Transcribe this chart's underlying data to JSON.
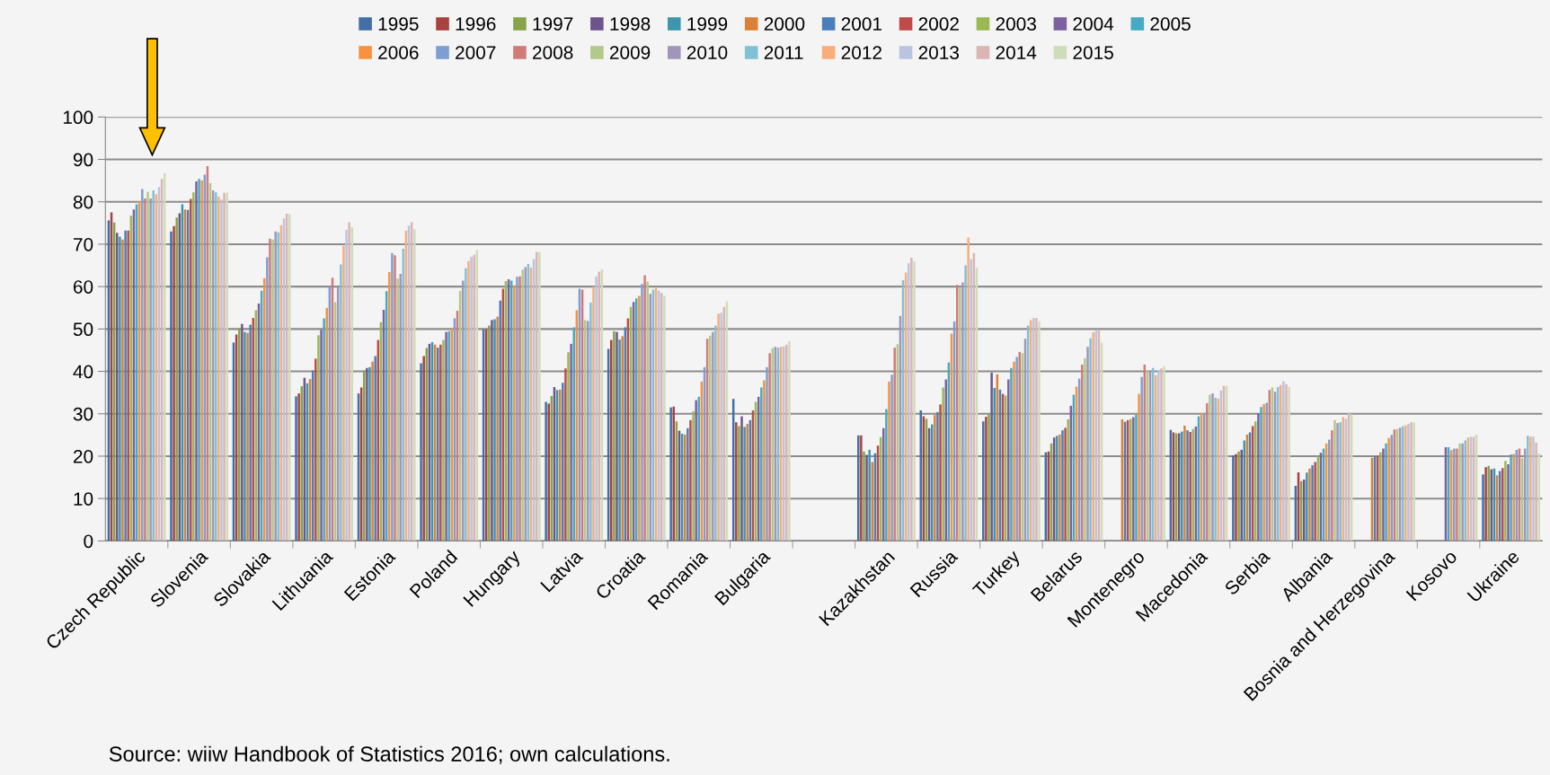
{
  "chart_data": {
    "type": "bar",
    "categories": [
      "Czech Republic",
      "Slovenia",
      "Slovakia",
      "Lithuania",
      "Estonia",
      "Poland",
      "Hungary",
      "Latvia",
      "Croatia",
      "Romania",
      "Bulgaria",
      null,
      "Kazakhstan",
      "Russia",
      "Turkey",
      "Belarus",
      "Montenegro",
      "Macedonia",
      "Serbia",
      "Albania",
      "Bosnia and Herzegovina",
      "Kosovo",
      "Ukraine"
    ],
    "series": [
      {
        "name": "1995",
        "color": "#416fa6",
        "values": [
          75.6,
          73.0,
          46.8,
          34.1,
          34.8,
          41.9,
          49.9,
          32.8,
          45.3,
          31.5,
          33.5,
          null,
          24.9,
          30.8,
          28.2,
          20.9,
          null,
          26.2,
          20.2,
          13.0,
          null,
          null,
          15.7
        ]
      },
      {
        "name": "1996",
        "color": "#a8423f",
        "values": [
          77.5,
          74.3,
          48.7,
          34.8,
          36.2,
          43.6,
          49.9,
          32.4,
          47.4,
          31.7,
          28.0,
          null,
          24.9,
          29.4,
          29.3,
          21.1,
          null,
          25.6,
          20.5,
          16.2,
          null,
          null,
          17.4
        ]
      },
      {
        "name": "1997",
        "color": "#86a44a",
        "values": [
          75.1,
          76.3,
          50.2,
          36.5,
          40.2,
          45.5,
          50.8,
          34.2,
          49.5,
          28.2,
          27.1,
          null,
          21.1,
          28.8,
          29.9,
          23.0,
          null,
          25.4,
          21.1,
          14.1,
          null,
          null,
          17.7
        ]
      },
      {
        "name": "1998",
        "color": "#6e548d",
        "values": [
          72.7,
          77.3,
          51.2,
          38.5,
          40.8,
          46.5,
          52.1,
          36.3,
          49.3,
          26.0,
          29.4,
          null,
          20.3,
          26.6,
          39.7,
          24.4,
          null,
          25.4,
          21.5,
          14.5,
          null,
          null,
          16.9
        ]
      },
      {
        "name": "1999",
        "color": "#3d96ae",
        "values": [
          71.8,
          79.4,
          49.3,
          37.2,
          41.0,
          46.9,
          52.3,
          35.6,
          47.5,
          25.3,
          26.9,
          null,
          21.5,
          27.5,
          36.1,
          24.8,
          null,
          25.8,
          23.7,
          16.1,
          null,
          null,
          17.1
        ]
      },
      {
        "name": "2000",
        "color": "#da8137",
        "values": [
          71.1,
          78.2,
          49.1,
          38.2,
          42.3,
          46.3,
          52.9,
          35.7,
          48.3,
          25.1,
          27.6,
          null,
          18.6,
          29.7,
          39.3,
          25.1,
          28.7,
          27.2,
          25.1,
          17.1,
          19.6,
          null,
          15.5
        ]
      },
      {
        "name": "2001",
        "color": "#4a7ebb",
        "values": [
          73.2,
          78.1,
          51.0,
          40.2,
          43.6,
          45.6,
          56.7,
          37.3,
          50.4,
          26.6,
          28.5,
          null,
          20.7,
          30.4,
          35.7,
          26.1,
          28.1,
          26.1,
          25.6,
          17.9,
          20.0,
          null,
          16.5
        ]
      },
      {
        "name": "2002",
        "color": "#be4b48",
        "values": [
          73.2,
          80.7,
          52.6,
          43.0,
          47.4,
          46.3,
          59.5,
          40.7,
          52.5,
          28.5,
          30.8,
          null,
          22.5,
          32.2,
          34.7,
          26.7,
          28.5,
          25.7,
          27.1,
          18.6,
          20.1,
          null,
          17.2
        ]
      },
      {
        "name": "2003",
        "color": "#98b954",
        "values": [
          76.7,
          82.2,
          54.4,
          48.5,
          51.6,
          47.4,
          61.3,
          44.5,
          55.2,
          30.6,
          32.8,
          null,
          24.5,
          36.2,
          34.3,
          28.7,
          28.8,
          26.4,
          28.2,
          20.0,
          20.9,
          null,
          18.9
        ]
      },
      {
        "name": "2004",
        "color": "#7d60a0",
        "values": [
          78.2,
          84.8,
          56.0,
          49.8,
          54.5,
          49.3,
          61.7,
          46.5,
          56.4,
          33.2,
          34.0,
          null,
          26.6,
          38.1,
          38.1,
          31.9,
          29.2,
          27.0,
          30.1,
          20.8,
          21.8,
          22.1,
          18.1
        ]
      },
      {
        "name": "2005",
        "color": "#46aac5",
        "values": [
          79.4,
          85.4,
          59.0,
          52.5,
          58.9,
          49.5,
          61.4,
          50.4,
          57.2,
          34.0,
          36.2,
          null,
          31.1,
          42.1,
          40.8,
          34.5,
          29.8,
          29.4,
          31.6,
          21.8,
          23.0,
          22.1,
          20.4
        ]
      },
      {
        "name": "2006",
        "color": "#f69240",
        "values": [
          80.1,
          85.0,
          62.0,
          55.0,
          63.4,
          50.1,
          60.3,
          54.4,
          57.8,
          37.6,
          37.9,
          null,
          37.6,
          48.9,
          42.3,
          36.4,
          34.7,
          30.2,
          32.3,
          23.0,
          24.3,
          21.4,
          20.5
        ]
      },
      {
        "name": "2007",
        "color": "#7f9ed0",
        "values": [
          83.0,
          86.4,
          66.9,
          60.0,
          67.9,
          52.5,
          62.3,
          59.5,
          60.6,
          41.0,
          41.0,
          null,
          39.2,
          51.8,
          43.4,
          38.3,
          38.7,
          30.2,
          32.6,
          23.9,
          25.0,
          21.8,
          21.5
        ]
      },
      {
        "name": "2008",
        "color": "#d07b7a",
        "values": [
          80.8,
          88.4,
          71.3,
          62.1,
          67.4,
          54.3,
          62.4,
          59.3,
          62.7,
          47.7,
          44.3,
          null,
          45.6,
          60.4,
          44.6,
          41.6,
          41.6,
          32.5,
          35.6,
          26.1,
          26.3,
          21.8,
          21.8
        ]
      },
      {
        "name": "2009",
        "color": "#b1c98a",
        "values": [
          82.4,
          84.4,
          71.1,
          56.3,
          61.9,
          59.0,
          64.0,
          52.1,
          61.2,
          48.4,
          45.5,
          null,
          46.4,
          59.7,
          44.3,
          43.1,
          40.3,
          34.5,
          36.2,
          28.5,
          26.4,
          23.0,
          19.5
        ]
      },
      {
        "name": "2010",
        "color": "#a195b9",
        "values": [
          80.8,
          82.7,
          73.0,
          60.0,
          63.0,
          61.4,
          64.6,
          51.9,
          58.3,
          49.3,
          45.8,
          null,
          53.1,
          61.0,
          47.7,
          45.8,
          40.0,
          34.8,
          35.2,
          27.8,
          26.7,
          23.0,
          21.8
        ]
      },
      {
        "name": "2011",
        "color": "#82c0d6",
        "values": [
          82.7,
          82.2,
          72.8,
          65.2,
          68.9,
          64.3,
          65.3,
          56.2,
          59.3,
          50.8,
          45.6,
          null,
          61.5,
          65.0,
          50.8,
          47.8,
          40.8,
          33.8,
          36.3,
          28.0,
          27.1,
          23.7,
          24.8
        ]
      },
      {
        "name": "2012",
        "color": "#f9ad7a",
        "values": [
          81.8,
          81.2,
          74.5,
          69.6,
          73.2,
          66.0,
          64.5,
          60.0,
          59.7,
          53.6,
          45.8,
          null,
          63.3,
          71.6,
          52.1,
          49.2,
          39.1,
          33.6,
          36.8,
          29.2,
          27.3,
          24.4,
          24.6
        ]
      },
      {
        "name": "2013",
        "color": "#b9c4de",
        "values": [
          83.5,
          80.5,
          76.1,
          73.4,
          74.4,
          67.0,
          66.5,
          62.4,
          59.1,
          53.8,
          45.9,
          null,
          65.5,
          66.5,
          52.6,
          49.7,
          40.3,
          35.5,
          37.7,
          28.8,
          27.6,
          24.6,
          24.6
        ]
      },
      {
        "name": "2014",
        "color": "#dcb4b3",
        "values": [
          85.4,
          82.1,
          77.2,
          75.2,
          75.2,
          67.5,
          68.2,
          63.5,
          58.5,
          55.2,
          46.3,
          null,
          66.8,
          67.9,
          52.6,
          49.7,
          40.7,
          36.6,
          37.0,
          30.2,
          28.0,
          24.6,
          23.2
        ]
      },
      {
        "name": "2015",
        "color": "#cfdcba",
        "values": [
          86.7,
          82.2,
          77.1,
          74.0,
          73.5,
          68.6,
          68.2,
          64.1,
          57.8,
          56.5,
          47.1,
          null,
          65.9,
          64.5,
          51.8,
          46.8,
          41.2,
          36.6,
          36.4,
          29.9,
          28.0,
          25.1,
          20.7
        ]
      }
    ],
    "ylim": [
      0,
      100
    ],
    "yticks": [
      0,
      10,
      20,
      30,
      40,
      50,
      60,
      70,
      80,
      90,
      100
    ],
    "grid": "y",
    "legend": "top",
    "annotations": [
      "Source: wiiw Handbook of Statistics 2016; own calculations."
    ]
  }
}
